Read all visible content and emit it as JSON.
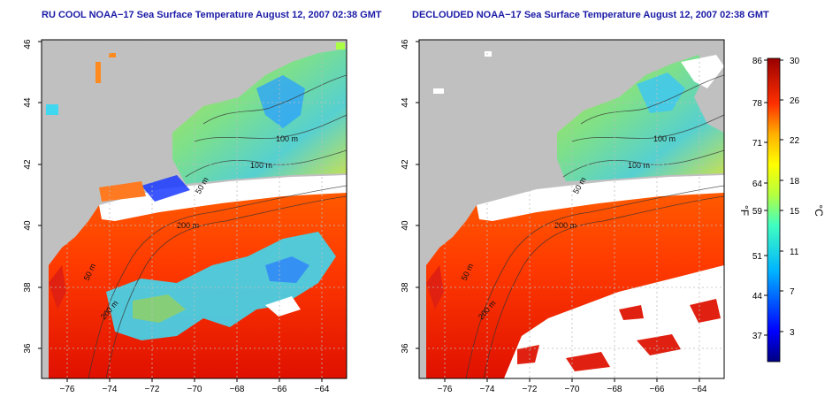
{
  "panels": [
    {
      "id": "ru-cool",
      "title": "RU COOL NOAA−17 Sea Surface Temperature August 12, 2007 02:38 GMT",
      "contour_labels": [
        "100 m",
        "100 m",
        "50 m",
        "200 m",
        "50 m",
        "200 m"
      ]
    },
    {
      "id": "declouded",
      "title": "DECLOUDED NOAA−17 Sea Surface Temperature August 12, 2007 02:38 GMT",
      "contour_labels": [
        "100 m",
        "100 m",
        "50 m",
        "200 m",
        "50 m",
        "200 m"
      ]
    }
  ],
  "map_axes": {
    "lon_ticks": [
      "−76",
      "−74",
      "−72",
      "−70",
      "−68",
      "−66",
      "−64"
    ],
    "lat_ticks": [
      "36",
      "38",
      "40",
      "42",
      "44",
      "46"
    ],
    "lon_range": [
      -77,
      -63
    ],
    "lat_range": [
      35,
      46
    ]
  },
  "colorbar": {
    "units_f": "°F",
    "units_c": "°C",
    "f_ticks": [
      "86",
      "78",
      "71",
      "64",
      "59",
      "51",
      "44",
      "37"
    ],
    "c_ticks": [
      "30",
      "26",
      "22",
      "18",
      "15",
      "11",
      "7",
      "3"
    ],
    "c_range": [
      0,
      30
    ]
  },
  "colors": {
    "land": "#c0c0c0",
    "cloud": "#ffffff",
    "title": "#1a1aa6",
    "grid": "#bdbdbd"
  }
}
